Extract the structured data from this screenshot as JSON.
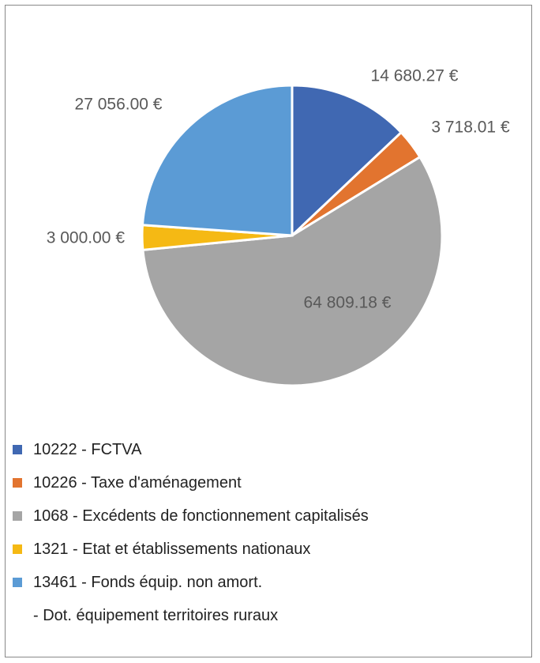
{
  "chart_data": {
    "type": "pie",
    "categories": [
      "10222 - FCTVA",
      "10226 - Taxe d'aménagement",
      "1068 - Excédents de fonctionnement capitalisés",
      "1321 - Etat et établissements nationaux",
      "13461 - Fonds équip. non amort.\n  - Dot. équipement territoires ruraux"
    ],
    "values": [
      14680.27,
      3718.01,
      64809.18,
      3000.0,
      27056.0
    ],
    "value_labels": [
      "14 680.27 €",
      "3 718.01 €",
      "64 809.18 €",
      "3 000.00 €",
      "27 056.00 €"
    ],
    "colors": [
      "#4068b2",
      "#e2742f",
      "#a5a5a5",
      "#f5b914",
      "#5b9bd5"
    ],
    "legend": "bottom"
  }
}
